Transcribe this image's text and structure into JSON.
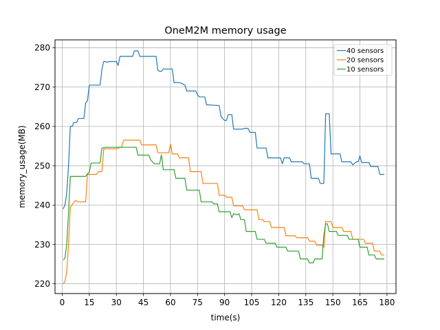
{
  "chart_data": {
    "type": "line",
    "title": "OneM2M memory usage",
    "xlabel": "time(s)",
    "ylabel": "memory_usage(MB)",
    "xlim": [
      -4,
      185
    ],
    "ylim": [
      217.5,
      282
    ],
    "xticks": [
      0,
      15,
      30,
      45,
      60,
      75,
      90,
      105,
      120,
      135,
      150,
      165,
      180
    ],
    "yticks": [
      220,
      230,
      240,
      250,
      260,
      270,
      280
    ],
    "grid": true,
    "legend_position": "top-right",
    "series": [
      {
        "name": "40 sensors",
        "color": "#1f77b4",
        "points": [
          [
            0.5,
            239
          ],
          [
            1.5,
            240
          ],
          [
            2.5,
            243
          ],
          [
            3.5,
            250
          ],
          [
            4.5,
            260
          ],
          [
            5.5,
            260
          ],
          [
            6.5,
            261
          ],
          [
            8,
            261
          ],
          [
            9,
            262
          ],
          [
            12,
            262
          ],
          [
            13,
            266
          ],
          [
            14,
            266.5
          ],
          [
            15,
            270.5
          ],
          [
            21,
            270.5
          ],
          [
            22,
            274.5
          ],
          [
            23,
            276.5
          ],
          [
            24,
            276.5
          ],
          [
            25,
            276.3
          ],
          [
            26,
            276.5
          ],
          [
            30,
            276.5
          ],
          [
            31,
            275.5
          ],
          [
            32,
            277.8
          ],
          [
            39,
            277.8
          ],
          [
            40,
            279.2
          ],
          [
            42,
            279.2
          ],
          [
            43,
            277.8
          ],
          [
            52,
            277.8
          ],
          [
            53,
            274.3
          ],
          [
            54,
            274
          ],
          [
            55,
            274
          ],
          [
            56,
            274.6
          ],
          [
            61,
            274.6
          ],
          [
            62,
            271.1
          ],
          [
            64,
            271.2
          ],
          [
            66,
            271
          ],
          [
            68,
            270.5
          ],
          [
            69,
            269
          ],
          [
            74,
            269
          ],
          [
            75,
            268
          ],
          [
            76,
            267.5
          ],
          [
            79,
            267.5
          ],
          [
            80,
            265.5
          ],
          [
            87,
            265.3
          ],
          [
            88,
            262.5
          ],
          [
            90,
            261.5
          ],
          [
            91,
            261.5
          ],
          [
            92,
            263
          ],
          [
            94,
            263
          ],
          [
            95,
            259.3
          ],
          [
            100,
            259.3
          ],
          [
            101,
            259.5
          ],
          [
            103,
            259.5
          ],
          [
            104,
            258.5
          ],
          [
            107,
            258.5
          ],
          [
            108,
            254.5
          ],
          [
            113,
            254.5
          ],
          [
            114,
            252
          ],
          [
            120,
            252
          ],
          [
            121,
            252
          ],
          [
            122,
            250.5
          ],
          [
            123,
            252
          ],
          [
            126,
            252
          ],
          [
            127,
            251
          ],
          [
            132,
            251
          ],
          [
            133,
            251
          ],
          [
            134,
            250.5
          ],
          [
            137,
            250.5
          ],
          [
            138,
            246.8
          ],
          [
            142,
            246.8
          ],
          [
            143,
            245.5
          ],
          [
            145,
            245.5
          ],
          [
            146,
            263.2
          ],
          [
            148,
            263.2
          ],
          [
            149,
            253
          ],
          [
            154,
            253
          ],
          [
            155,
            251
          ],
          [
            160,
            251
          ],
          [
            161,
            250.2
          ],
          [
            163,
            251
          ],
          [
            164,
            251
          ],
          [
            165,
            252.5
          ],
          [
            166,
            250.8
          ],
          [
            170,
            250.8
          ],
          [
            171,
            249.8
          ],
          [
            175,
            249.8
          ],
          [
            176,
            247.8
          ],
          [
            178.5,
            247.8
          ]
        ]
      },
      {
        "name": "20 sensors",
        "color": "#ff7f0e",
        "points": [
          [
            0.5,
            220
          ],
          [
            1.5,
            220.5
          ],
          [
            2.5,
            223
          ],
          [
            3.5,
            230
          ],
          [
            4.5,
            239.5
          ],
          [
            5.5,
            240
          ],
          [
            6.5,
            240.8
          ],
          [
            7.5,
            241.2
          ],
          [
            8.5,
            240.8
          ],
          [
            13,
            240.8
          ],
          [
            14,
            247.8
          ],
          [
            19,
            247.8
          ],
          [
            20,
            248.5
          ],
          [
            22,
            248.5
          ],
          [
            23,
            254.3
          ],
          [
            30,
            254.3
          ],
          [
            33,
            254.8
          ],
          [
            34,
            256.5
          ],
          [
            43,
            256.5
          ],
          [
            44,
            255.3
          ],
          [
            52,
            255.3
          ],
          [
            53,
            253.3
          ],
          [
            59,
            253.3
          ],
          [
            60,
            255.5
          ],
          [
            61,
            253
          ],
          [
            64,
            253
          ],
          [
            65,
            252
          ],
          [
            70,
            252
          ],
          [
            71,
            248.5
          ],
          [
            77,
            248.5
          ],
          [
            78,
            245.5
          ],
          [
            86,
            245.5
          ],
          [
            87,
            242.5
          ],
          [
            90,
            242.5
          ],
          [
            91,
            242
          ],
          [
            94,
            242
          ],
          [
            95,
            239.8
          ],
          [
            100,
            239.8
          ],
          [
            101,
            238.8
          ],
          [
            108,
            238.8
          ],
          [
            109,
            236.3
          ],
          [
            111,
            236.3
          ],
          [
            112,
            235.8
          ],
          [
            115,
            235.8
          ],
          [
            116,
            234.3
          ],
          [
            123,
            234.3
          ],
          [
            124,
            232.2
          ],
          [
            129,
            232.2
          ],
          [
            130,
            231.7
          ],
          [
            136,
            231.7
          ],
          [
            137,
            230.8
          ],
          [
            140,
            230.8
          ],
          [
            141,
            229.8
          ],
          [
            144,
            229.8
          ],
          [
            145,
            229.2
          ],
          [
            146,
            235.8
          ],
          [
            149,
            235.8
          ],
          [
            150,
            234.3
          ],
          [
            155,
            234.3
          ],
          [
            156,
            233.3
          ],
          [
            160,
            233.3
          ],
          [
            161,
            231.3
          ],
          [
            167,
            231.3
          ],
          [
            168,
            230.3
          ],
          [
            172,
            230.3
          ],
          [
            173,
            228.3
          ],
          [
            176,
            228.3
          ],
          [
            177,
            227.3
          ],
          [
            178.5,
            227.3
          ]
        ]
      },
      {
        "name": "10 sensors",
        "color": "#2ca02c",
        "points": [
          [
            0.5,
            226
          ],
          [
            1.5,
            226.5
          ],
          [
            2.5,
            230
          ],
          [
            3.5,
            238
          ],
          [
            4.5,
            247.3
          ],
          [
            13,
            247.3
          ],
          [
            14,
            248
          ],
          [
            15,
            248.3
          ],
          [
            16,
            250.7
          ],
          [
            21,
            250.7
          ],
          [
            22,
            254.5
          ],
          [
            24,
            254.7
          ],
          [
            41,
            254.7
          ],
          [
            42,
            252.7
          ],
          [
            48,
            252.7
          ],
          [
            49,
            251.5
          ],
          [
            50,
            251
          ],
          [
            51,
            250.5
          ],
          [
            54,
            250.5
          ],
          [
            55,
            252.8
          ],
          [
            56,
            249
          ],
          [
            62,
            249
          ],
          [
            63,
            246.8
          ],
          [
            68,
            246.8
          ],
          [
            69,
            243.8
          ],
          [
            76,
            243.8
          ],
          [
            77,
            240.8
          ],
          [
            83,
            240.8
          ],
          [
            84,
            240.3
          ],
          [
            86,
            240.3
          ],
          [
            87,
            238.3
          ],
          [
            93,
            238.3
          ],
          [
            94,
            236.8
          ],
          [
            95,
            237.8
          ],
          [
            97,
            237.5
          ],
          [
            98,
            237.8
          ],
          [
            99,
            236.3
          ],
          [
            101,
            236.3
          ],
          [
            102,
            233.3
          ],
          [
            107,
            233.3
          ],
          [
            108,
            231.3
          ],
          [
            112,
            231.3
          ],
          [
            113,
            230.3
          ],
          [
            118,
            230.3
          ],
          [
            119,
            229.3
          ],
          [
            124,
            229.3
          ],
          [
            125,
            228.3
          ],
          [
            131,
            228.3
          ],
          [
            132,
            226.3
          ],
          [
            136,
            226.3
          ],
          [
            137,
            225.3
          ],
          [
            139,
            225.3
          ],
          [
            140,
            226.3
          ],
          [
            144,
            226.3
          ],
          [
            145,
            232.3
          ],
          [
            146,
            235.2
          ],
          [
            147,
            235.2
          ],
          [
            148,
            233.3
          ],
          [
            152,
            233.3
          ],
          [
            153,
            232.3
          ],
          [
            158,
            232.3
          ],
          [
            159,
            231.3
          ],
          [
            164,
            231.3
          ],
          [
            165,
            229.3
          ],
          [
            169,
            229.3
          ],
          [
            170,
            227.3
          ],
          [
            173,
            227.3
          ],
          [
            174,
            226.3
          ],
          [
            178.5,
            226.3
          ]
        ]
      }
    ]
  }
}
